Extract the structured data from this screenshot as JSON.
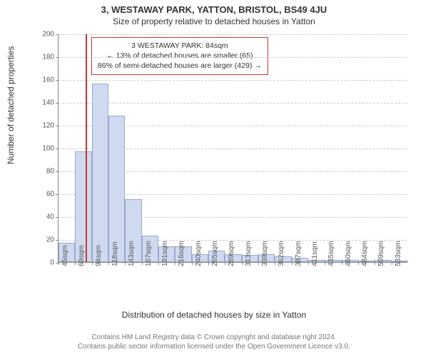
{
  "title": "3, WESTAWAY PARK, YATTON, BRISTOL, BS49 4JU",
  "subtitle": "Size of property relative to detached houses in Yatton",
  "y_axis": {
    "label": "Number of detached properties",
    "min": 0,
    "max": 200,
    "step": 20,
    "label_fontsize": 12,
    "tick_fontsize": 10
  },
  "x_axis": {
    "label": "Distribution of detached houses by size in Yatton",
    "label_fontsize": 12,
    "tick_fontsize": 10,
    "categories": [
      "45sqm",
      "69sqm",
      "94sqm",
      "118sqm",
      "143sqm",
      "167sqm",
      "191sqm",
      "216sqm",
      "240sqm",
      "265sqm",
      "289sqm",
      "313sqm",
      "338sqm",
      "362sqm",
      "387sqm",
      "411sqm",
      "435sqm",
      "460sqm",
      "484sqm",
      "509sqm",
      "533sqm"
    ]
  },
  "chart": {
    "type": "histogram",
    "values": [
      17,
      97,
      156,
      128,
      55,
      23,
      14,
      14,
      7,
      10,
      7,
      6,
      7,
      5,
      4,
      2,
      2,
      2,
      1,
      2,
      1
    ],
    "bar_fill": "#cfdaf0",
    "bar_border": "#9aa9c9",
    "bar_width_ratio": 1.0,
    "background": "#ffffff",
    "grid_color": "#cccccc",
    "axis_color": "#888888"
  },
  "marker": {
    "position_sqm": 84,
    "color": "#cc3333",
    "box_border": "#cc3333",
    "lines": [
      "3 WESTAWAY PARK: 84sqm",
      "← 13% of detached houses are smaller (65)",
      "86% of semi-detached houses are larger (429) →"
    ]
  },
  "footer": {
    "line1": "Contains HM Land Registry data © Crown copyright and database right 2024.",
    "line2": "Contains public sector information licensed under the Open Government Licence v3.0.",
    "fontsize": 10,
    "color": "#777777"
  }
}
